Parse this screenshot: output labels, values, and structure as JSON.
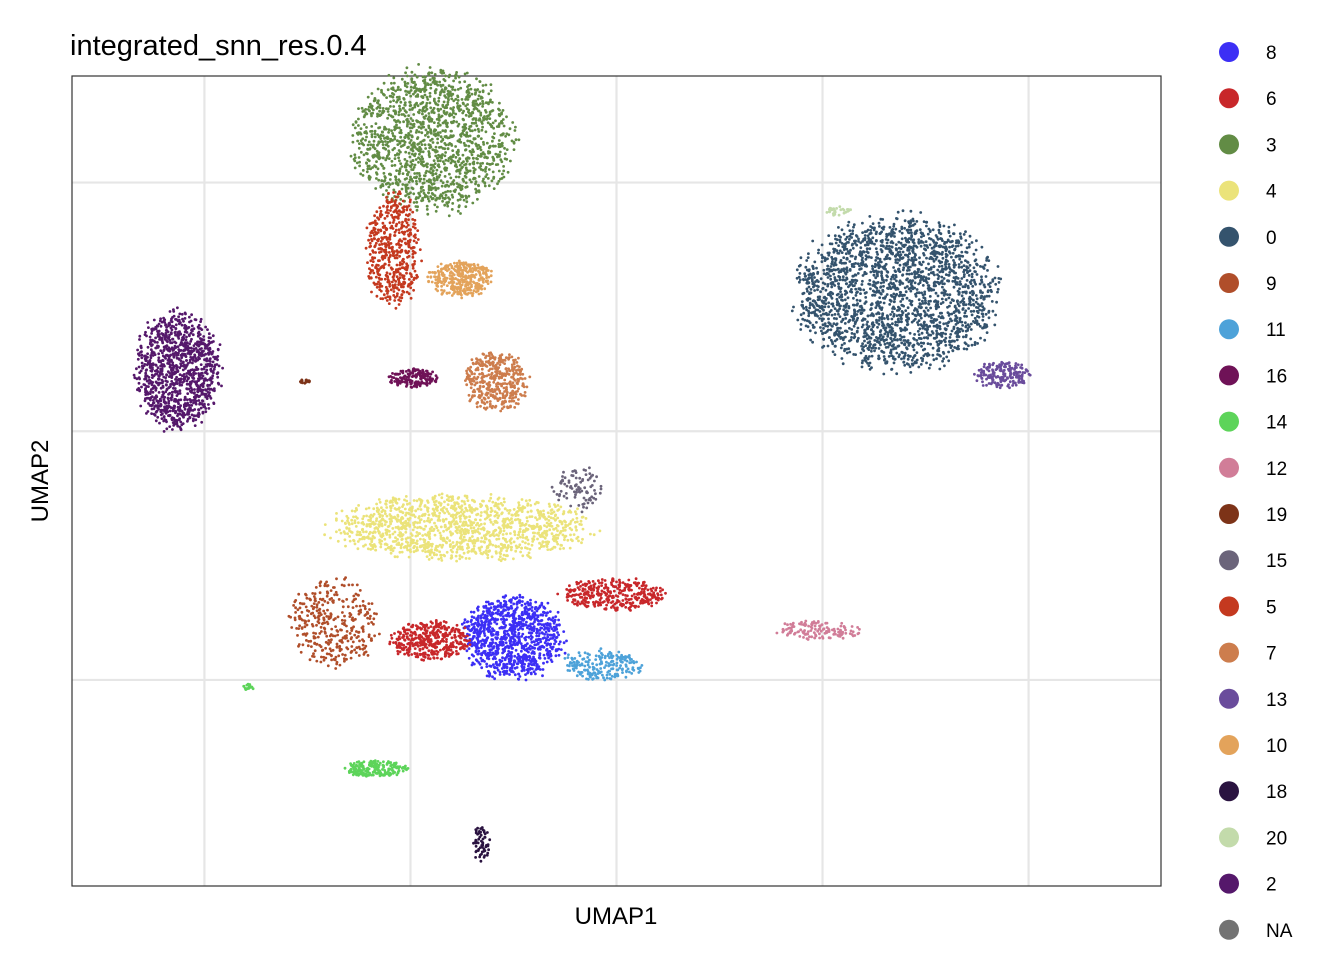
{
  "chart_data": {
    "type": "scatter",
    "title": "integrated_snn_res.0.4",
    "xlabel": "UMAP1",
    "ylabel": "UMAP2",
    "x_ticks_shown": false,
    "y_ticks_shown": false,
    "grid": true,
    "legend_position": "right",
    "legend": [
      {
        "label": "8",
        "color": "#3C2FF5"
      },
      {
        "label": "6",
        "color": "#C8272A"
      },
      {
        "label": "3",
        "color": "#628C45"
      },
      {
        "label": "4",
        "color": "#EBE37A"
      },
      {
        "label": "0",
        "color": "#34536D"
      },
      {
        "label": "9",
        "color": "#B04E2A"
      },
      {
        "label": "11",
        "color": "#4DA2D9"
      },
      {
        "label": "16",
        "color": "#6F1257"
      },
      {
        "label": "14",
        "color": "#5DD45A"
      },
      {
        "label": "12",
        "color": "#D17D98"
      },
      {
        "label": "19",
        "color": "#7D3318"
      },
      {
        "label": "15",
        "color": "#6B647A"
      },
      {
        "label": "5",
        "color": "#C4391F"
      },
      {
        "label": "7",
        "color": "#CD7D4D"
      },
      {
        "label": "13",
        "color": "#6A4C9C"
      },
      {
        "label": "10",
        "color": "#E3A35B"
      },
      {
        "label": "18",
        "color": "#2A1340"
      },
      {
        "label": "20",
        "color": "#C3DBAB"
      },
      {
        "label": "2",
        "color": "#55186B"
      },
      {
        "label": "NA",
        "color": "#737373"
      }
    ],
    "clusters": [
      {
        "label": "2",
        "shape": "ellipse",
        "cx": -10.9,
        "cy": -0.3,
        "rx": 1.6,
        "ry": 1.8,
        "density": 1100
      },
      {
        "label": "19",
        "shape": "ellipse",
        "cx": -6.6,
        "cy": -0.6,
        "rx": 0.22,
        "ry": 0.06,
        "density": 20
      },
      {
        "label": "3",
        "shape": "ellipse",
        "cx": -2.2,
        "cy": 6.2,
        "rx": 3.0,
        "ry": 2.2,
        "density": 1500
      },
      {
        "label": "5",
        "shape": "ellipse",
        "cx": -3.6,
        "cy": 3.1,
        "rx": 1.0,
        "ry": 1.8,
        "density": 500
      },
      {
        "label": "10",
        "shape": "ellipse",
        "cx": -1.3,
        "cy": 2.3,
        "rx": 1.2,
        "ry": 0.55,
        "density": 350
      },
      {
        "label": "16",
        "shape": "ellipse",
        "cx": -2.9,
        "cy": -0.5,
        "rx": 0.9,
        "ry": 0.3,
        "density": 160
      },
      {
        "label": "7",
        "shape": "ellipse",
        "cx": -0.1,
        "cy": -0.6,
        "rx": 1.2,
        "ry": 0.9,
        "density": 400
      },
      {
        "label": "0",
        "shape": "ellipse",
        "cx": 13.5,
        "cy": 1.9,
        "rx": 3.8,
        "ry": 2.4,
        "density": 2200
      },
      {
        "label": "20",
        "shape": "ellipse",
        "cx": 11.6,
        "cy": 4.2,
        "rx": 0.5,
        "ry": 0.15,
        "density": 30
      },
      {
        "label": "13",
        "shape": "ellipse",
        "cx": 17.1,
        "cy": -0.4,
        "rx": 1.1,
        "ry": 0.4,
        "density": 180
      },
      {
        "label": "4",
        "shape": "ellipse",
        "cx": -1.3,
        "cy": -4.7,
        "rx": 4.8,
        "ry": 1.0,
        "density": 1300
      },
      {
        "label": "15",
        "shape": "ellipse",
        "cx": 2.7,
        "cy": -3.6,
        "rx": 0.9,
        "ry": 0.7,
        "density": 90
      },
      {
        "label": "8",
        "shape": "ellipse",
        "cx": 0.5,
        "cy": -7.8,
        "rx": 1.9,
        "ry": 1.3,
        "density": 1000
      },
      {
        "label": "6",
        "shape": "ellipse",
        "cx": -2.3,
        "cy": -7.9,
        "rx": 1.5,
        "ry": 0.6,
        "density": 400
      },
      {
        "label": "6",
        "shape": "ellipse",
        "cx": 3.9,
        "cy": -6.6,
        "rx": 1.9,
        "ry": 0.5,
        "density": 350
      },
      {
        "label": "11",
        "shape": "ellipse",
        "cx": 3.5,
        "cy": -8.6,
        "rx": 1.5,
        "ry": 0.5,
        "density": 200
      },
      {
        "label": "9",
        "shape": "ellipse",
        "cx": -5.6,
        "cy": -7.4,
        "rx": 1.6,
        "ry": 1.4,
        "density": 350
      },
      {
        "label": "12",
        "shape": "ellipse",
        "cx": 10.9,
        "cy": -7.6,
        "rx": 1.6,
        "ry": 0.3,
        "density": 140
      },
      {
        "label": "14",
        "shape": "ellipse",
        "cx": -4.2,
        "cy": -11.5,
        "rx": 1.2,
        "ry": 0.25,
        "density": 200
      },
      {
        "label": "14",
        "shape": "ellipse",
        "cx": -8.5,
        "cy": -9.2,
        "rx": 0.2,
        "ry": 0.1,
        "density": 15
      },
      {
        "label": "18",
        "shape": "ellipse",
        "cx": -0.6,
        "cy": -13.6,
        "rx": 0.3,
        "ry": 0.6,
        "density": 60
      }
    ]
  }
}
